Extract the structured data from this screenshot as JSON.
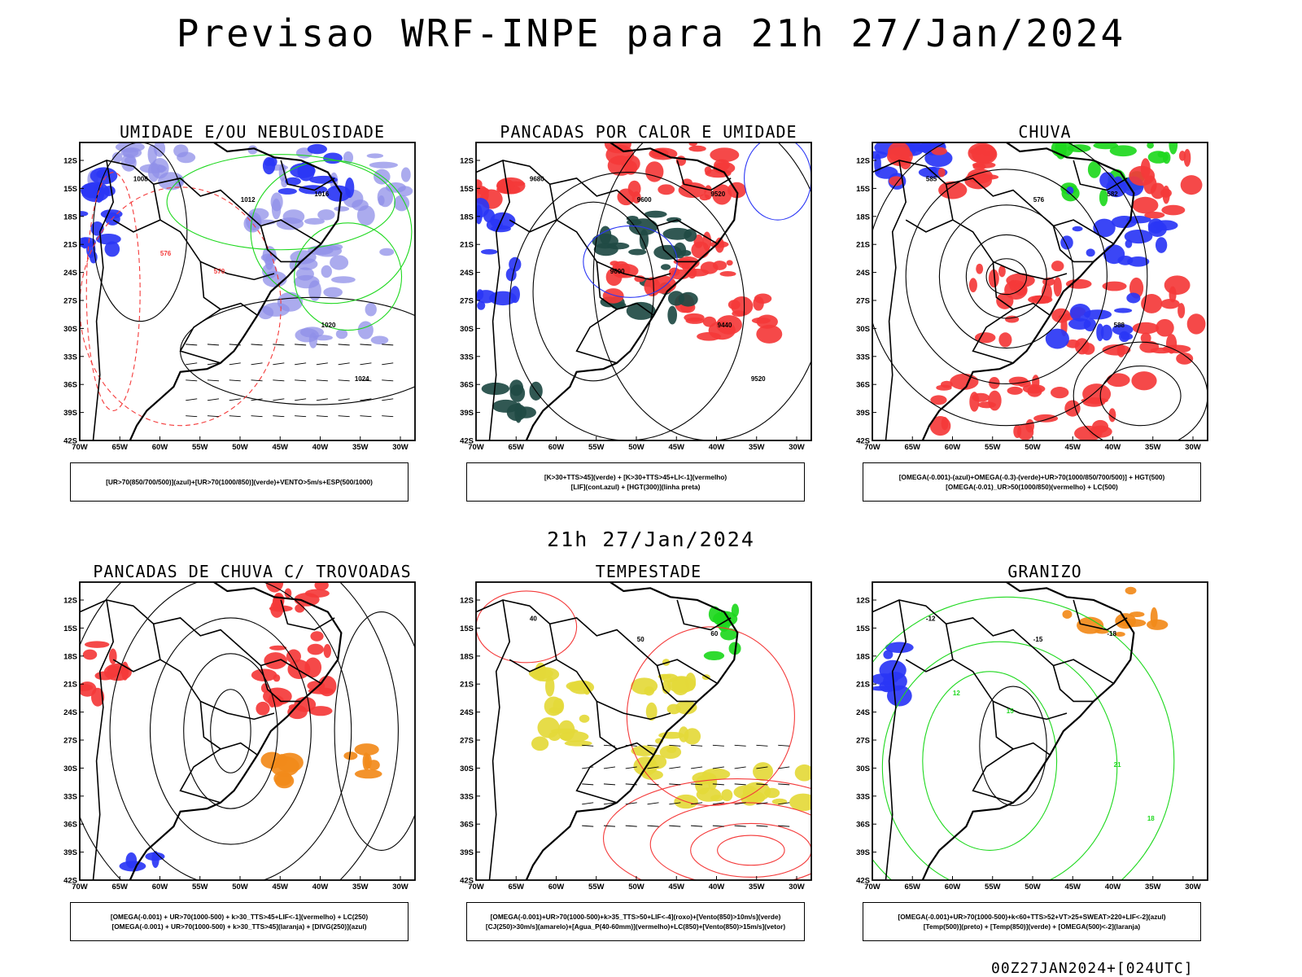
{
  "page": {
    "title": "Previsao WRF-INPE  para 21h 27/Jan/2024",
    "middle_title": "21h 27/Jan/2024",
    "footer": "00Z27JAN2024+[024UTC]"
  },
  "axes": {
    "latitudes": [
      "12S",
      "15S",
      "18S",
      "21S",
      "24S",
      "27S",
      "30S",
      "33S",
      "36S",
      "39S",
      "42S"
    ],
    "longitudes": [
      "70W",
      "65W",
      "60W",
      "55W",
      "50W",
      "45W",
      "40W",
      "35W",
      "30W"
    ]
  },
  "colors": {
    "blue": "#2a36f5",
    "lavender": "#8f8fe8",
    "green": "#1ed81e",
    "red": "#f43a3a",
    "dark_teal": "#1f4a44",
    "yellow": "#e4d93a",
    "orange": "#f28a1a",
    "black": "#000000"
  },
  "panels": [
    {
      "title": "UMIDADE E/OU NEBULOSIDADE",
      "legend": [
        "[UR>70(850/700/500)](azul)+[UR>70(1000/850)](verde)+VENTO>5m/s+ESP(500/1000)"
      ],
      "isolines": [
        "1008",
        "1012",
        "1016",
        "1020",
        "1024",
        "570",
        "576"
      ]
    },
    {
      "title": "PANCADAS POR CALOR E UMIDADE",
      "legend": [
        "[K>30+TTS>45](verde) + [K>30+TTS>45+LI<-1](vermelho)",
        "[LIF](cont.azul) + [HGT(300)](linha preta)"
      ],
      "isolines": [
        "9680",
        "9600",
        "9520",
        "9440",
        "9520",
        "9600"
      ]
    },
    {
      "title": "CHUVA",
      "legend": [
        "[OMEGA(-0.001)-(azul)+OMEGA(-0.3)-(verde)+UR>70(1000/850/700/500)] + HGT(500)",
        "[OMEGA(-0.01)_UR>50(1000/850)(vermelho) + LC(500)"
      ],
      "isolines": [
        "585",
        "576",
        "582",
        "588"
      ]
    },
    {
      "title": "PANCADAS DE CHUVA C/ TROVOADAS",
      "legend": [
        "[OMEGA(-0.001) + UR>70(1000-500) + k>30_TTS>45+LIF<-1](vermelho) + LC(250)",
        "[OMEGA(-0.001) + UR>70(1000-500) + k>30_TTS>45](laranja) + [DIVG(250)](azul)"
      ],
      "isolines": []
    },
    {
      "title": "TEMPESTADE",
      "legend": [
        "[OMEGA(-0.001)+UR>70(1000-500)+k>35_TTS>50+LIF<-4](roxo)+[Vento(850)>10m/s](verde)",
        "[CJ(250)>30m/s](amarelo)+[Agua_P(40-60mm)](vermelho)+LC(850)+[Vento(850)>15m/s](vetor)"
      ],
      "isolines": [
        "40",
        "50",
        "60"
      ]
    },
    {
      "title": "GRANIZO",
      "legend": [
        "[OMEGA(-0.001)+UR>70(1000-500)+k<60+TTS>52+VT>25+SWEAT>220+LIF<-2](azul)",
        "[Temp(500)](preto) + [Temp(850)](verde) + [OMEGA(500)<-2](laranja)"
      ],
      "isolines": [
        "-12",
        "-15",
        "-18",
        "21",
        "18",
        "15",
        "12"
      ]
    }
  ]
}
